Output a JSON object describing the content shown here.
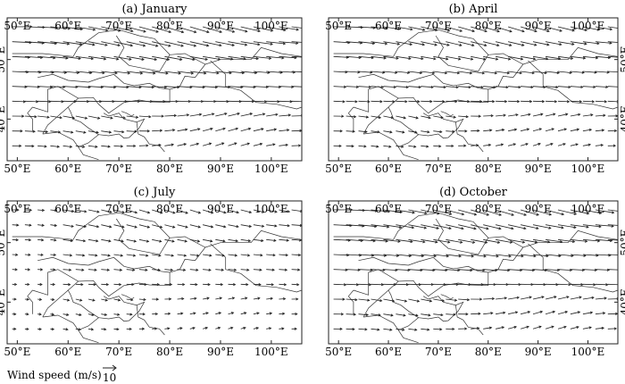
{
  "figure": {
    "legend_label": "Wind speed (m/s)",
    "legend_value": "10",
    "x_ticks": [
      "50°E",
      "60°E",
      "70°E",
      "80°E",
      "90°E",
      "100°E"
    ],
    "y_ticks": [
      "40°E",
      "50°E"
    ],
    "panels": [
      {
        "id": "a",
        "title": "(a) January",
        "lat_tick_side": "left"
      },
      {
        "id": "b",
        "title": "(b) April",
        "lat_tick_side": "right"
      },
      {
        "id": "c",
        "title": "(c) July",
        "lat_tick_side": "left"
      },
      {
        "id": "d",
        "title": "(d) October",
        "lat_tick_side": "right"
      }
    ],
    "colors": {
      "frame": "#222222",
      "arrow": "#222222",
      "border": "#333333"
    }
  }
}
